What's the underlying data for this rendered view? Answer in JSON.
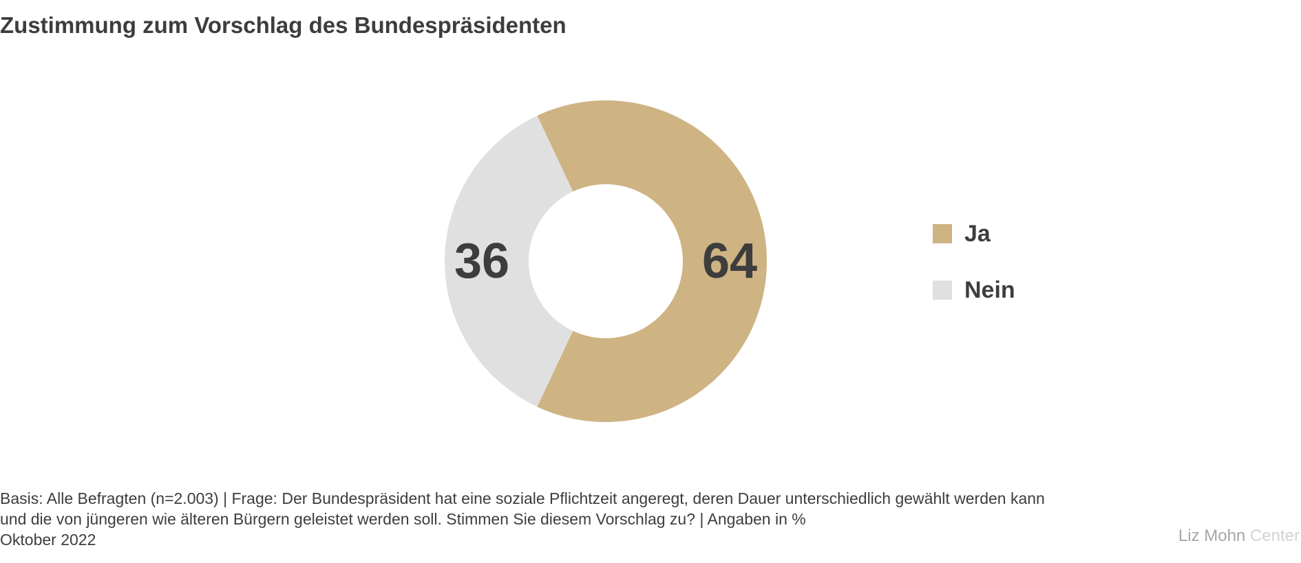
{
  "chart_data": {
    "type": "pie",
    "title": "Zustimmung zum Vorschlag des Bundespräsidenten",
    "donut": true,
    "categories": [
      "Ja",
      "Nein"
    ],
    "values": [
      64,
      36
    ],
    "data_labels": [
      "64",
      "36"
    ],
    "colors": [
      "#ceb383",
      "#e0e0e0"
    ],
    "legend": {
      "placement": "right",
      "entries": [
        {
          "label": "Ja",
          "color": "#ceb383"
        },
        {
          "label": "Nein",
          "color": "#e0e0e0"
        }
      ]
    }
  },
  "footnote": {
    "line1": "Basis: Alle Befragten (n=2.003) | Frage: Der Bundespräsident hat eine soziale Pflichtzeit angeregt, deren Dauer unterschiedlich gewählt werden kann",
    "line2": "und die von jüngeren wie älteren Bürgern geleistet werden soll. Stimmen Sie diesem Vorschlag zu? | Angaben in %",
    "line3": "Oktober 2022"
  },
  "branding": {
    "part1": "Liz Mohn",
    "part2": "Center"
  }
}
